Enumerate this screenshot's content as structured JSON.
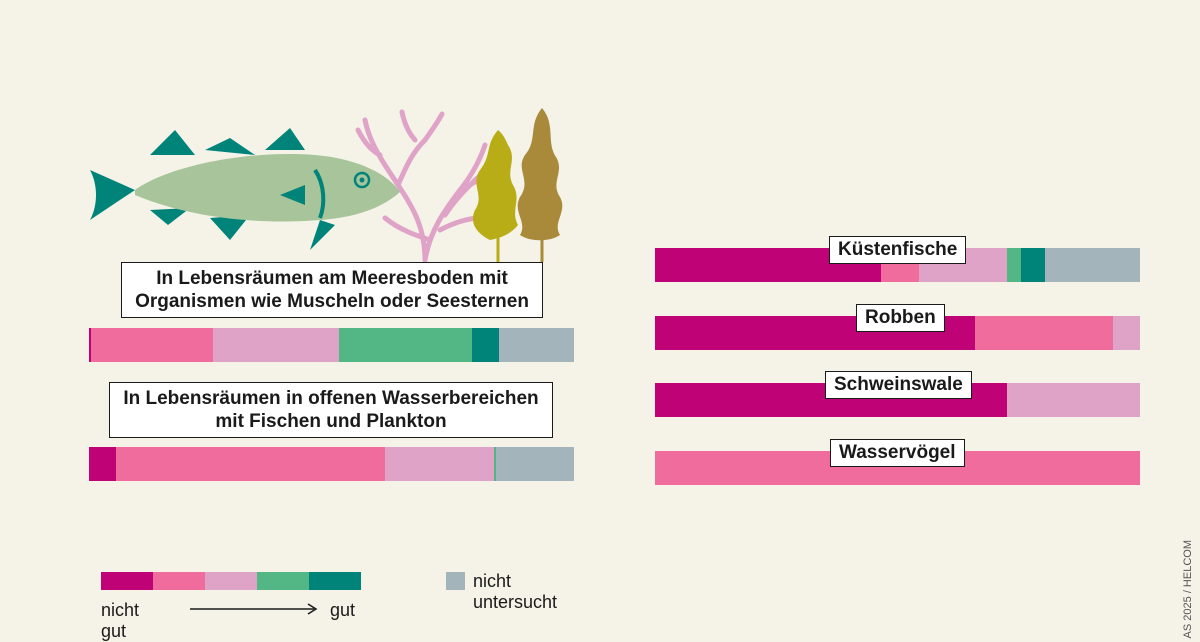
{
  "colors": {
    "scale": [
      "#bf0376",
      "#ef6c9c",
      "#e0a3c8",
      "#52b784",
      "#00847a"
    ],
    "not_studied": "#a4b4bb"
  },
  "chart_data": [
    {
      "type": "bar",
      "orientation": "horizontal-stacked",
      "group": "left",
      "categories": [
        "In Lebensräumen am Meeresboden mit Organismen wie Muscheln oder Seesternen",
        "In Lebensräumen in offenen Wasserbereichen mit Fischen und Plankton"
      ],
      "series": [
        {
          "name": "nicht gut",
          "values": [
            0.5,
            5.5
          ]
        },
        {
          "name": "",
          "values": [
            25,
            55.5
          ]
        },
        {
          "name": "",
          "values": [
            26,
            22.5
          ]
        },
        {
          "name": "",
          "values": [
            27.5,
            0.5
          ]
        },
        {
          "name": "gut",
          "values": [
            5.5,
            0
          ]
        },
        {
          "name": "nicht untersucht",
          "values": [
            15.5,
            16
          ]
        }
      ],
      "xlim": [
        0,
        100
      ]
    },
    {
      "type": "bar",
      "orientation": "horizontal-stacked",
      "group": "right",
      "categories": [
        "Küstenfische",
        "Robben",
        "Schweinswale",
        "Wasservögel"
      ],
      "series": [
        {
          "name": "nicht gut",
          "values": [
            46.5,
            66,
            72.5,
            0
          ]
        },
        {
          "name": "",
          "values": [
            8,
            28.5,
            0,
            100
          ]
        },
        {
          "name": "",
          "values": [
            18,
            5.5,
            27.5,
            0
          ]
        },
        {
          "name": "",
          "values": [
            3,
            0,
            0,
            0
          ]
        },
        {
          "name": "gut",
          "values": [
            5,
            0,
            0,
            0
          ]
        },
        {
          "name": "nicht untersucht",
          "values": [
            19.5,
            0,
            0,
            0
          ]
        }
      ],
      "xlim": [
        0,
        100
      ]
    }
  ],
  "labels": {
    "left": [
      [
        "In Lebensräumen am Meeresboden mit",
        "Organismen wie Muscheln oder Seesternen"
      ],
      [
        "In Lebensräumen in offenen Wasserbereichen",
        "mit Fischen und Plankton"
      ]
    ]
  },
  "legend": {
    "from_label": "nicht gut",
    "to_label": "gut",
    "not_studied_label": "nicht untersucht"
  },
  "credit": "AS 2025 / HELCOM",
  "illustration": {
    "icons": [
      "fish-icon",
      "coral-icon",
      "seaweed-icon"
    ]
  }
}
